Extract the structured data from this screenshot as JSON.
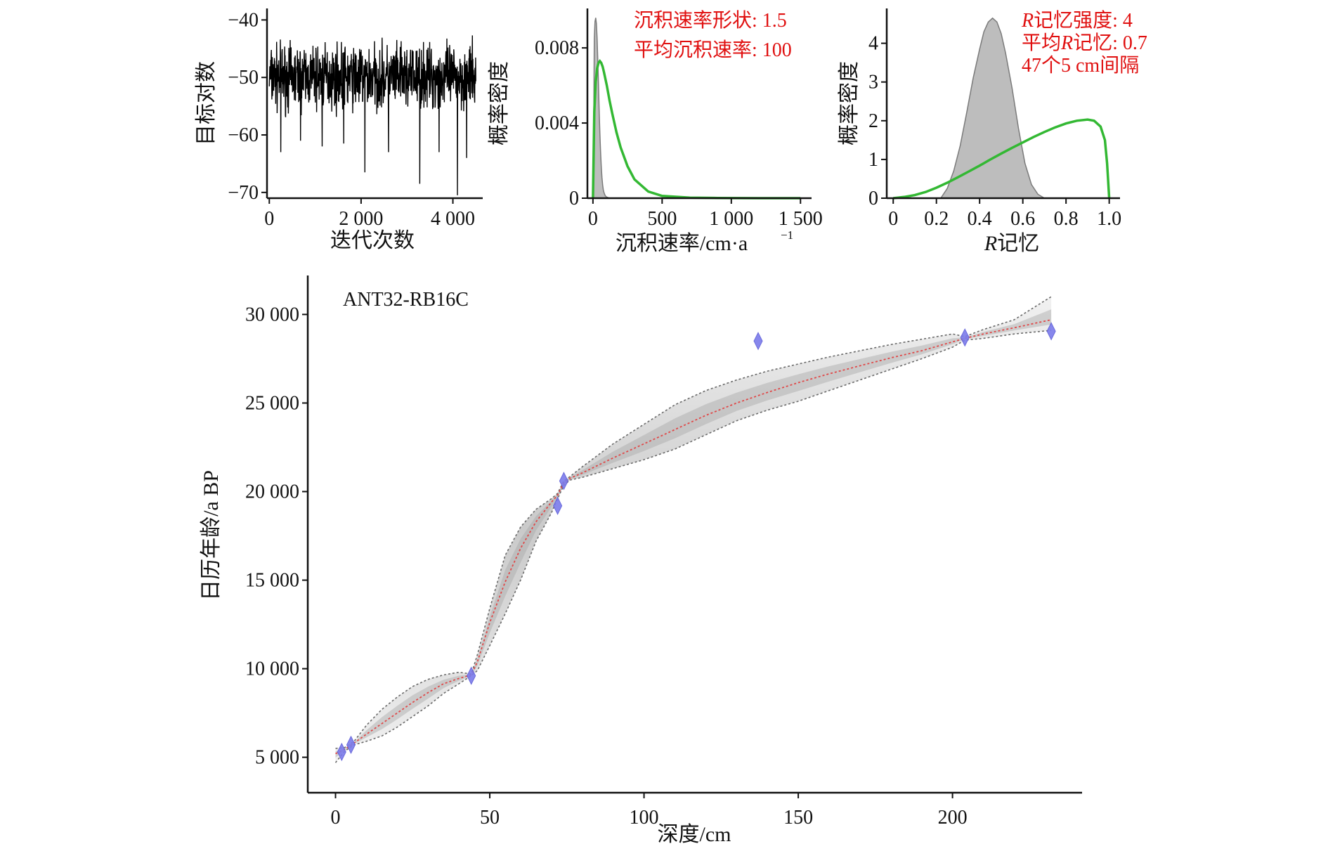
{
  "colors": {
    "prior": "#33b833",
    "posterior_fill": "#bdbdbd",
    "posterior_line": "#7a7a7a",
    "trace": "#000000",
    "mean_line": "#e04848",
    "ci_line": "#6a6a6a",
    "dates": "#7b7bea",
    "annotation": "#e01010"
  },
  "chart_data": [
    {
      "type": "line",
      "panel": "iterations",
      "xlabel": "迭代次数",
      "ylabel": "目标对数",
      "xlim": [
        -50,
        4650
      ],
      "ylim": [
        -71,
        -38
      ],
      "xticks": [
        0,
        2000,
        4000
      ],
      "xtick_labels": [
        "0",
        "2 000",
        "4 000"
      ],
      "yticks": [
        -40,
        -50,
        -60,
        -70
      ],
      "ytick_labels": [
        "−40",
        "−50",
        "−60",
        "−70"
      ],
      "series": [
        {
          "iterations": 4500,
          "typical_range": [
            -58,
            -42
          ],
          "downward_spikes": [
            {
              "x": 250,
              "y": -63
            },
            {
              "x": 680,
              "y": -61
            },
            {
              "x": 1150,
              "y": -62
            },
            {
              "x": 1620,
              "y": -61.5
            },
            {
              "x": 2080,
              "y": -66.5
            },
            {
              "x": 2600,
              "y": -63
            },
            {
              "x": 3280,
              "y": -68.5
            },
            {
              "x": 3700,
              "y": -63
            },
            {
              "x": 4100,
              "y": -70.5
            },
            {
              "x": 4300,
              "y": -64
            }
          ]
        }
      ]
    },
    {
      "type": "area",
      "panel": "accumulation-rate",
      "xlabel": "沉积速率/cm·a",
      "xlabel_superscript": "−1",
      "ylabel": "概率密度",
      "xlim": [
        -40,
        1580
      ],
      "ylim": [
        0,
        0.0101
      ],
      "xticks": [
        0,
        500,
        1000,
        1500
      ],
      "xtick_labels": [
        "0",
        "500",
        "1 000",
        "1 500"
      ],
      "yticks": [
        0,
        0.004,
        0.008
      ],
      "ytick_labels": [
        "0",
        "0.004",
        "0.008"
      ],
      "annotations": [
        "沉积速率形状: 1.5",
        "平均沉积速率: 100"
      ],
      "posterior": {
        "x": [
          0,
          5,
          10,
          15,
          20,
          25,
          30,
          35,
          40,
          45,
          50,
          55,
          60,
          65,
          70,
          75,
          80,
          85,
          90,
          100,
          110,
          120,
          140,
          170,
          200
        ],
        "y": [
          0,
          0.0035,
          0.0085,
          0.0094,
          0.0096,
          0.0093,
          0.0085,
          0.0073,
          0.006,
          0.0047,
          0.0035,
          0.0025,
          0.0017,
          0.0011,
          0.0007,
          0.00045,
          0.0003,
          0.0002,
          0.00012,
          6e-05,
          3e-05,
          1e-05,
          0,
          0,
          0
        ]
      },
      "prior": {
        "x": [
          0,
          10,
          20,
          30,
          40,
          50,
          60,
          70,
          80,
          100,
          120,
          140,
          170,
          200,
          250,
          300,
          400,
          500,
          700,
          900,
          1200,
          1500
        ],
        "y": [
          0,
          0.0046,
          0.0062,
          0.0069,
          0.0072,
          0.0073,
          0.0072,
          0.007,
          0.0067,
          0.006,
          0.0052,
          0.0045,
          0.0035,
          0.0027,
          0.0017,
          0.001,
          0.00035,
          0.00012,
          3e-05,
          1e-05,
          0,
          0
        ]
      }
    },
    {
      "type": "area",
      "panel": "memory",
      "xlabel": "R记忆",
      "xlabel_italic": "R",
      "xlabel_rest": "记忆",
      "ylabel": "概率密度",
      "xlim": [
        -0.03,
        1.05
      ],
      "ylim": [
        0,
        4.9
      ],
      "xticks": [
        0,
        0.2,
        0.4,
        0.6,
        0.8,
        1.0
      ],
      "xtick_labels": [
        "0",
        "0.2",
        "0.4",
        "0.6",
        "0.8",
        "1.0"
      ],
      "yticks": [
        0,
        1,
        2,
        3,
        4
      ],
      "ytick_labels": [
        "0",
        "1",
        "2",
        "3",
        "4"
      ],
      "annotations": [
        {
          "italic": "R",
          "text": "记忆强度: 4"
        },
        {
          "prefix": "平均",
          "italic": "R",
          "text": "记忆: 0.7"
        },
        {
          "text": "47个5 cm间隔"
        }
      ],
      "posterior": {
        "x": [
          0.22,
          0.25,
          0.28,
          0.31,
          0.34,
          0.37,
          0.4,
          0.42,
          0.44,
          0.46,
          0.48,
          0.5,
          0.52,
          0.55,
          0.58,
          0.61,
          0.64,
          0.67,
          0.7
        ],
        "y": [
          0,
          0.25,
          0.7,
          1.35,
          2.2,
          3.1,
          3.85,
          4.3,
          4.55,
          4.65,
          4.55,
          4.25,
          3.75,
          2.85,
          1.8,
          0.9,
          0.35,
          0.1,
          0
        ]
      },
      "prior": {
        "x": [
          0,
          0.05,
          0.1,
          0.15,
          0.2,
          0.25,
          0.3,
          0.35,
          0.4,
          0.45,
          0.5,
          0.55,
          0.6,
          0.65,
          0.7,
          0.75,
          0.8,
          0.85,
          0.9,
          0.93,
          0.96,
          0.98,
          0.99,
          1.0
        ],
        "y": [
          0,
          0.03,
          0.08,
          0.16,
          0.27,
          0.4,
          0.54,
          0.69,
          0.84,
          1.0,
          1.15,
          1.3,
          1.44,
          1.58,
          1.71,
          1.83,
          1.93,
          2.0,
          2.03,
          2.0,
          1.85,
          1.5,
          0.9,
          0
        ]
      }
    },
    {
      "type": "line",
      "panel": "age-depth",
      "label": "ANT32-RB16C",
      "xlabel": "深度/cm",
      "ylabel": "日历年龄/a BP",
      "xlim": [
        -9,
        242
      ],
      "ylim": [
        3000,
        32200
      ],
      "xticks": [
        0,
        50,
        100,
        150,
        200
      ],
      "xtick_labels": [
        "0",
        "50",
        "100",
        "150",
        "200"
      ],
      "yticks": [
        5000,
        10000,
        15000,
        20000,
        25000,
        30000
      ],
      "ytick_labels": [
        "5 000",
        "10 000",
        "15 000",
        "20 000",
        "25 000",
        "30 000"
      ],
      "series": [
        {
          "name": "mean",
          "x": [
            0,
            3,
            6,
            10,
            15,
            20,
            25,
            30,
            35,
            40,
            44,
            46,
            50,
            55,
            60,
            65,
            70,
            72,
            74,
            76,
            80,
            90,
            100,
            110,
            120,
            130,
            140,
            150,
            160,
            170,
            180,
            190,
            200,
            204,
            210,
            220,
            232
          ],
          "y": [
            5200,
            5450,
            5800,
            6300,
            6900,
            7500,
            8100,
            8650,
            9150,
            9450,
            9650,
            10400,
            12600,
            14900,
            16800,
            18300,
            19400,
            19800,
            20500,
            20750,
            21050,
            21900,
            22700,
            23500,
            24300,
            25000,
            25600,
            26150,
            26650,
            27100,
            27550,
            27950,
            28450,
            28650,
            28900,
            29250,
            29700
          ]
        },
        {
          "name": "ci-upper",
          "x": [
            0,
            3,
            6,
            10,
            15,
            20,
            25,
            30,
            35,
            40,
            44,
            46,
            50,
            55,
            60,
            65,
            70,
            72,
            74,
            76,
            80,
            90,
            100,
            110,
            120,
            130,
            140,
            150,
            160,
            170,
            180,
            190,
            200,
            204,
            210,
            220,
            232
          ],
          "y": [
            5500,
            5550,
            5900,
            6800,
            7700,
            8400,
            9000,
            9400,
            9650,
            9800,
            9700,
            10800,
            13400,
            16400,
            18000,
            19000,
            19600,
            19900,
            20600,
            20850,
            21400,
            22700,
            23800,
            24900,
            25700,
            26300,
            26800,
            27200,
            27600,
            27950,
            28300,
            28600,
            28900,
            28750,
            29150,
            29700,
            31000
          ]
        },
        {
          "name": "ci-lower",
          "x": [
            0,
            3,
            6,
            10,
            15,
            20,
            25,
            30,
            35,
            40,
            44,
            46,
            50,
            55,
            60,
            65,
            70,
            72,
            74,
            76,
            80,
            90,
            100,
            110,
            120,
            130,
            140,
            150,
            160,
            170,
            180,
            190,
            200,
            204,
            210,
            220,
            232
          ],
          "y": [
            4700,
            5350,
            5700,
            5900,
            6200,
            6700,
            7300,
            7900,
            8600,
            9150,
            9600,
            9900,
            11300,
            13100,
            15000,
            17200,
            18800,
            19600,
            20350,
            20650,
            20800,
            21300,
            21800,
            22400,
            23200,
            24000,
            24600,
            25100,
            25700,
            26300,
            26900,
            27500,
            28150,
            28550,
            28650,
            28900,
            29100
          ]
        }
      ],
      "dated_samples": {
        "depth": [
          2,
          5,
          44,
          72,
          74,
          137,
          204,
          232
        ],
        "age": [
          5300,
          5700,
          9600,
          19200,
          20600,
          28500,
          28700,
          29050
        ]
      }
    }
  ]
}
